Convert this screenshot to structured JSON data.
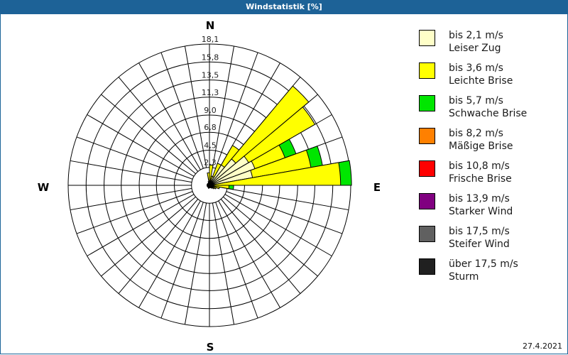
{
  "window": {
    "title": "Windstatistik [%]"
  },
  "compass": {
    "n": "N",
    "e": "E",
    "s": "S",
    "w": "W"
  },
  "footer": {
    "date": "27.4.2021"
  },
  "legend": [
    {
      "range": "bis 2,1 m/s",
      "name": "Leiser Zug",
      "color": "#ffffc8"
    },
    {
      "range": "bis 3,6 m/s",
      "name": "Leichte Brise",
      "color": "#ffff00"
    },
    {
      "range": "bis 5,7 m/s",
      "name": "Schwache Brise",
      "color": "#00e600"
    },
    {
      "range": "bis 8,2 m/s",
      "name": "Mäßige Brise",
      "color": "#ff8000"
    },
    {
      "range": "bis 10,8 m/s",
      "name": "Frische Brise",
      "color": "#ff0000"
    },
    {
      "range": "bis 13,9 m/s",
      "name": "Starker Wind",
      "color": "#800080"
    },
    {
      "range": "bis 17,5 m/s",
      "name": "Steifer Wind",
      "color": "#606060"
    },
    {
      "range": "über 17,5 m/s",
      "name": "Sturm",
      "color": "#202020"
    }
  ],
  "chart_data": {
    "type": "polar-bar",
    "title": "Windstatistik [%]",
    "unit": "%",
    "radial_ticks": [
      "2,3",
      "4,5",
      "6,8",
      "9,0",
      "11,3",
      "13,5",
      "15,8",
      "18,1"
    ],
    "radial_tick_values": [
      2.3,
      4.5,
      6.8,
      9.0,
      11.3,
      13.5,
      15.8,
      18.1
    ],
    "rmax": 18.1,
    "sector_width_deg": 10,
    "series_order": [
      "Leiser Zug",
      "Leichte Brise",
      "Schwache Brise",
      "Mäßige Brise",
      "Frische Brise",
      "Starker Wind",
      "Steifer Wind",
      "Sturm"
    ],
    "sectors": [
      {
        "dir_deg": 5,
        "cumulative": [
          0.6,
          2.6
        ]
      },
      {
        "dir_deg": 15,
        "cumulative": [
          0.6,
          1.2
        ]
      },
      {
        "dir_deg": 25,
        "cumulative": [
          1.2,
          3.0
        ]
      },
      {
        "dir_deg": 35,
        "cumulative": [
          3.0,
          5.9
        ]
      },
      {
        "dir_deg": 45,
        "cumulative": [
          4.4,
          16.6
        ]
      },
      {
        "dir_deg": 55,
        "cumulative": [
          5.8,
          15.6
        ]
      },
      {
        "dir_deg": 65,
        "cumulative": [
          6.2,
          10.3,
          11.8
        ]
      },
      {
        "dir_deg": 75,
        "cumulative": [
          5.6,
          13.2,
          14.7
        ]
      },
      {
        "dir_deg": 85,
        "cumulative": [
          0.5,
          16.8,
          18.2
        ]
      },
      {
        "dir_deg": 95,
        "cumulative": [
          0.4,
          2.5,
          3.1
        ]
      },
      {
        "dir_deg": 105,
        "cumulative": [
          0.3,
          1.3
        ]
      },
      {
        "dir_deg": 115,
        "cumulative": [
          0.2,
          0.9
        ]
      },
      {
        "dir_deg": 125,
        "cumulative": [
          0.2,
          0.7
        ]
      },
      {
        "dir_deg": 135,
        "cumulative": [
          0.1,
          0.5
        ]
      },
      {
        "dir_deg": 145,
        "cumulative": [
          0.1,
          0.4
        ]
      },
      {
        "dir_deg": 155,
        "cumulative": [
          0.1,
          0.3
        ]
      },
      {
        "dir_deg": 165,
        "cumulative": [
          0.1,
          0.3
        ]
      },
      {
        "dir_deg": 175,
        "cumulative": [
          0.1,
          0.3
        ]
      },
      {
        "dir_deg": 185,
        "cumulative": [
          0.1,
          0.3
        ]
      },
      {
        "dir_deg": 195,
        "cumulative": [
          0.1,
          0.4
        ]
      },
      {
        "dir_deg": 205,
        "cumulative": [
          0.1,
          0.3
        ]
      },
      {
        "dir_deg": 215,
        "cumulative": [
          0.1,
          0.2
        ]
      },
      {
        "dir_deg": 225,
        "cumulative": [
          0.1,
          0.2
        ]
      },
      {
        "dir_deg": 235,
        "cumulative": [
          0.1,
          0.2
        ]
      },
      {
        "dir_deg": 245,
        "cumulative": [
          0.1,
          0.2
        ]
      },
      {
        "dir_deg": 255,
        "cumulative": [
          0.1,
          0.2
        ]
      },
      {
        "dir_deg": 265,
        "cumulative": [
          0.1,
          0.2
        ]
      },
      {
        "dir_deg": 275,
        "cumulative": [
          0.1,
          0.2
        ]
      },
      {
        "dir_deg": 285,
        "cumulative": [
          0.1,
          0.2
        ]
      },
      {
        "dir_deg": 295,
        "cumulative": [
          0.1,
          0.2
        ]
      },
      {
        "dir_deg": 305,
        "cumulative": [
          0.1,
          0.2
        ]
      },
      {
        "dir_deg": 315,
        "cumulative": [
          0.1,
          0.2
        ]
      },
      {
        "dir_deg": 325,
        "cumulative": [
          0.1,
          0.2
        ]
      },
      {
        "dir_deg": 335,
        "cumulative": [
          0.1,
          0.3
        ]
      },
      {
        "dir_deg": 345,
        "cumulative": [
          0.2,
          0.5
        ]
      },
      {
        "dir_deg": 355,
        "cumulative": [
          0.4,
          1.6
        ]
      }
    ],
    "legend_position": "right",
    "grid": true
  }
}
